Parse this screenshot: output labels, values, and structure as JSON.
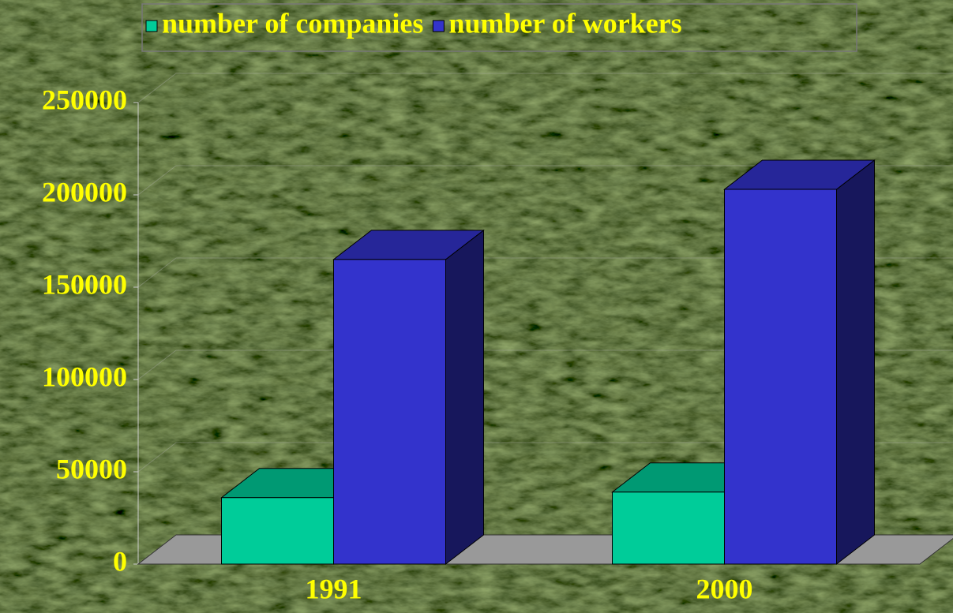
{
  "chart_data": {
    "type": "bar3d",
    "categories": [
      "1991",
      "2000"
    ],
    "series": [
      {
        "name": "number of companies",
        "color": "#00cc99",
        "values": [
          36000,
          39000
        ]
      },
      {
        "name": "number of workers",
        "color": "#3333cc",
        "values": [
          165000,
          203000
        ]
      }
    ],
    "ylim": [
      0,
      250000
    ],
    "yticks": [
      0,
      50000,
      100000,
      150000,
      200000,
      250000
    ],
    "grid": true
  }
}
